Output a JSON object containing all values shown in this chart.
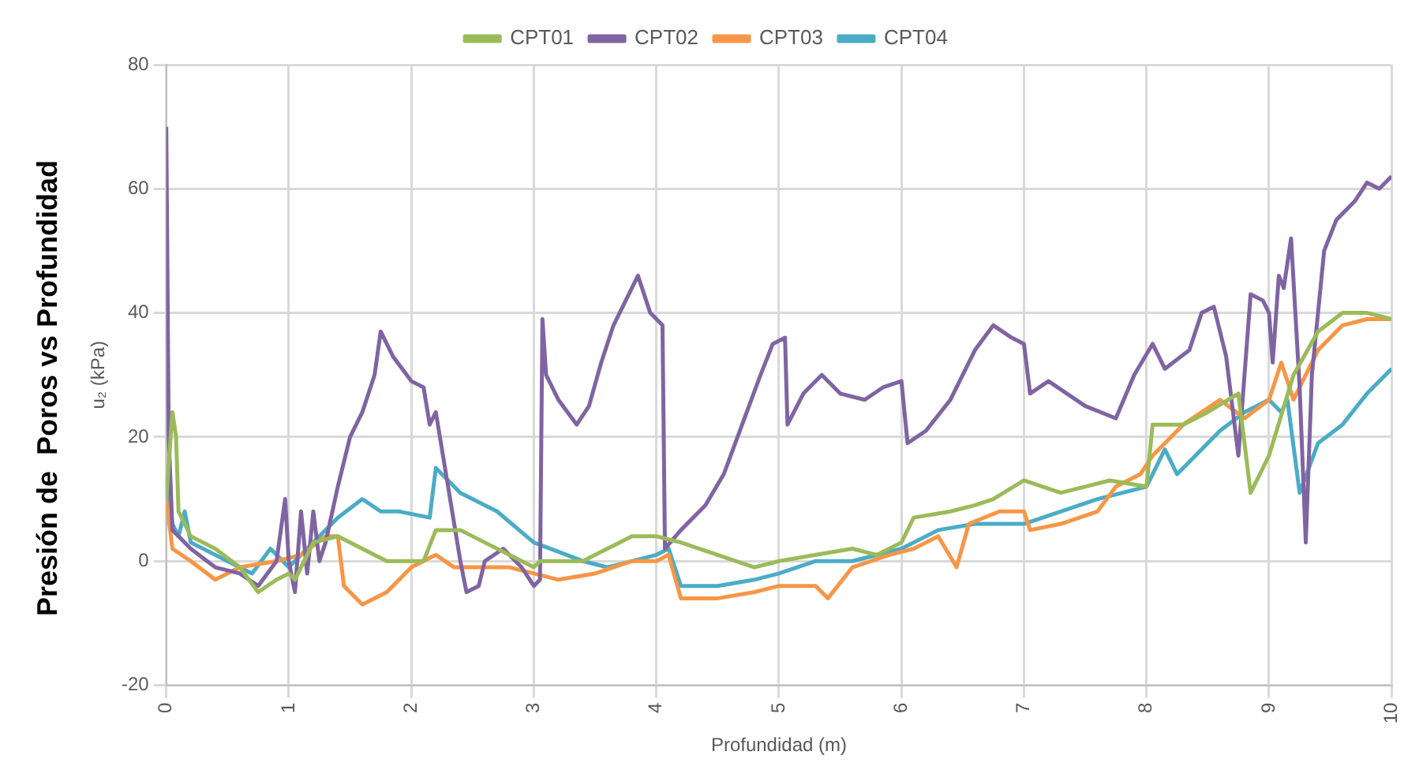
{
  "chart_data": {
    "type": "line",
    "title": "Presión de  Poros vs Profundidad",
    "xlabel": "Profundidad (m)",
    "ylabel": "u₂ (kPa)",
    "xlim": [
      0,
      10
    ],
    "xticks": [
      0,
      1,
      2,
      3,
      4,
      5,
      6,
      7,
      8,
      9,
      10
    ],
    "ylim": [
      -20,
      80
    ],
    "yticks": [
      -20,
      0,
      20,
      40,
      60,
      80
    ],
    "grid": true,
    "legend": "top",
    "marker": "none",
    "line_style": "solid",
    "series": [
      {
        "name": "CPT01",
        "color": "#9bbb59",
        "x": [
          0,
          0.05,
          0.08,
          0.1,
          0.2,
          0.4,
          0.6,
          0.75,
          0.9,
          1.0,
          1.05,
          1.2,
          1.4,
          1.6,
          1.8,
          2.0,
          2.1,
          2.2,
          2.4,
          2.6,
          2.8,
          3.0,
          3.05,
          3.1,
          3.4,
          3.6,
          3.8,
          4.0,
          4.2,
          4.5,
          4.8,
          5.0,
          5.3,
          5.6,
          5.8,
          6.0,
          6.1,
          6.4,
          6.6,
          6.75,
          7.0,
          7.3,
          7.5,
          7.7,
          8.0,
          8.05,
          8.3,
          8.5,
          8.75,
          8.85,
          9.0,
          9.2,
          9.4,
          9.6,
          9.8,
          10
        ],
        "values": [
          10,
          24,
          20,
          8,
          4,
          2,
          -1,
          -5,
          -3,
          -2,
          -3,
          3,
          4,
          2,
          0,
          0,
          0,
          5,
          5,
          3,
          1,
          -1,
          0,
          0,
          0,
          2,
          4,
          4,
          3,
          1,
          -1,
          0,
          1,
          2,
          1,
          3,
          7,
          8,
          9,
          10,
          13,
          11,
          12,
          13,
          12,
          22,
          22,
          24,
          27,
          11,
          17,
          30,
          37,
          40,
          40,
          39
        ]
      },
      {
        "name": "CPT02",
        "color": "#8064a2",
        "x": [
          0,
          0.02,
          0.05,
          0.2,
          0.4,
          0.6,
          0.75,
          0.9,
          0.97,
          1.0,
          1.05,
          1.1,
          1.15,
          1.2,
          1.25,
          1.3,
          1.4,
          1.5,
          1.6,
          1.7,
          1.75,
          1.85,
          2.0,
          2.1,
          2.15,
          2.2,
          2.3,
          2.4,
          2.45,
          2.55,
          2.6,
          2.75,
          2.9,
          3.0,
          3.05,
          3.07,
          3.1,
          3.2,
          3.35,
          3.45,
          3.55,
          3.65,
          3.75,
          3.85,
          3.95,
          4.05,
          4.07,
          4.2,
          4.4,
          4.55,
          4.7,
          4.85,
          4.95,
          5.05,
          5.07,
          5.2,
          5.35,
          5.5,
          5.7,
          5.85,
          6.0,
          6.05,
          6.2,
          6.4,
          6.6,
          6.75,
          6.9,
          7.0,
          7.05,
          7.2,
          7.5,
          7.75,
          7.9,
          8.05,
          8.15,
          8.35,
          8.45,
          8.55,
          8.65,
          8.75,
          8.85,
          8.95,
          9.0,
          9.03,
          9.08,
          9.12,
          9.18,
          9.25,
          9.3,
          9.35,
          9.45,
          9.55,
          9.7,
          9.8,
          9.9,
          10
        ],
        "values": [
          70,
          20,
          5,
          2,
          -1,
          -2,
          -4,
          0,
          10,
          0,
          -5,
          8,
          -2,
          8,
          0,
          3,
          12,
          20,
          24,
          30,
          37,
          33,
          29,
          28,
          22,
          24,
          12,
          0,
          -5,
          -4,
          0,
          2,
          -1,
          -4,
          -3,
          39,
          30,
          26,
          22,
          25,
          32,
          38,
          42,
          46,
          40,
          38,
          2,
          5,
          9,
          14,
          22,
          30,
          35,
          36,
          22,
          27,
          30,
          27,
          26,
          28,
          29,
          19,
          21,
          26,
          34,
          38,
          36,
          35,
          27,
          29,
          25,
          23,
          30,
          35,
          31,
          34,
          40,
          41,
          33,
          17,
          43,
          42,
          40,
          32,
          46,
          44,
          52,
          28,
          3,
          30,
          50,
          55,
          58,
          61,
          60,
          62
        ]
      },
      {
        "name": "CPT03",
        "color": "#f79646",
        "x": [
          0,
          0.05,
          0.2,
          0.4,
          0.6,
          0.9,
          1.1,
          1.3,
          1.4,
          1.45,
          1.6,
          1.8,
          2.0,
          2.2,
          2.35,
          2.5,
          2.8,
          3.0,
          3.2,
          3.5,
          3.8,
          4.0,
          4.1,
          4.2,
          4.5,
          4.8,
          5.0,
          5.3,
          5.4,
          5.6,
          5.9,
          6.1,
          6.3,
          6.45,
          6.55,
          6.8,
          7.0,
          7.05,
          7.3,
          7.6,
          7.75,
          7.95,
          8.05,
          8.3,
          8.6,
          8.8,
          9.0,
          9.1,
          9.2,
          9.4,
          9.6,
          9.8,
          10
        ],
        "values": [
          10,
          2,
          0,
          -3,
          -1,
          0,
          1,
          4,
          4,
          -4,
          -7,
          -5,
          -1,
          1,
          -1,
          -1,
          -1,
          -2,
          -3,
          -2,
          0,
          0,
          1,
          -6,
          -6,
          -5,
          -4,
          -4,
          -6,
          -1,
          1,
          2,
          4,
          -1,
          6,
          8,
          8,
          5,
          6,
          8,
          12,
          14,
          17,
          22,
          26,
          23,
          26,
          32,
          26,
          34,
          38,
          39,
          39
        ]
      },
      {
        "name": "CPT04",
        "color": "#4bacc6",
        "x": [
          0,
          0.05,
          0.1,
          0.15,
          0.2,
          0.5,
          0.7,
          0.85,
          1.0,
          1.2,
          1.4,
          1.6,
          1.75,
          1.9,
          2.15,
          2.2,
          2.4,
          2.7,
          3.0,
          3.4,
          3.6,
          4.0,
          4.1,
          4.2,
          4.5,
          4.8,
          5.0,
          5.3,
          5.6,
          6.0,
          6.3,
          6.6,
          7.0,
          7.3,
          7.6,
          8.0,
          8.15,
          8.25,
          8.4,
          8.6,
          8.8,
          9.0,
          9.1,
          9.15,
          9.25,
          9.4,
          9.6,
          9.8,
          10
        ],
        "values": [
          14,
          6,
          4,
          8,
          3,
          0,
          -2,
          2,
          -1,
          3,
          7,
          10,
          8,
          8,
          7,
          15,
          11,
          8,
          3,
          0,
          -1,
          1,
          2,
          -4,
          -4,
          -3,
          -2,
          0,
          0,
          2,
          5,
          6,
          6,
          8,
          10,
          12,
          18,
          14,
          17,
          21,
          24,
          26,
          24,
          26,
          11,
          19,
          22,
          27,
          31
        ]
      }
    ]
  }
}
